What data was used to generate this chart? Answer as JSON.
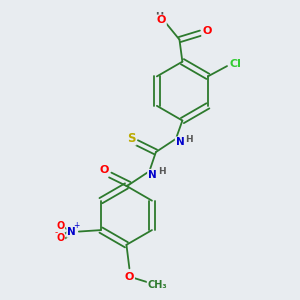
{
  "bg_color": "#e8ecf0",
  "bond_color": "#2d7a2d",
  "atom_colors": {
    "O": "#ff0000",
    "N": "#0000cc",
    "S": "#bbaa00",
    "Cl": "#33cc33",
    "H": "#555555",
    "C": "#2d7a2d"
  },
  "fs": 7.5
}
